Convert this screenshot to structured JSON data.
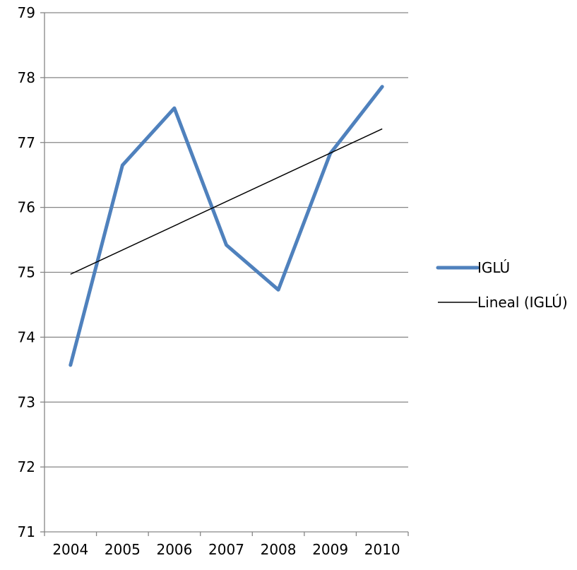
{
  "chart_data": {
    "type": "line",
    "title": "",
    "xlabel": "",
    "ylabel": "",
    "categories": [
      "2004",
      "2005",
      "2006",
      "2007",
      "2008",
      "2009",
      "2010"
    ],
    "ylim": [
      71,
      79
    ],
    "yticks": [
      "71",
      "72",
      "73",
      "74",
      "75",
      "76",
      "77",
      "78",
      "79"
    ],
    "grid": true,
    "legend_position": "right",
    "series": [
      {
        "name": "IGLÚ",
        "values": [
          73.57,
          76.65,
          77.53,
          75.42,
          74.73,
          76.83,
          77.86
        ],
        "color": "#4f81bd"
      }
    ],
    "trendline": {
      "name": "Lineal (IGLÚ)",
      "kind": "linear",
      "start_value": 74.97,
      "end_value": 77.21,
      "color": "#000000"
    }
  }
}
